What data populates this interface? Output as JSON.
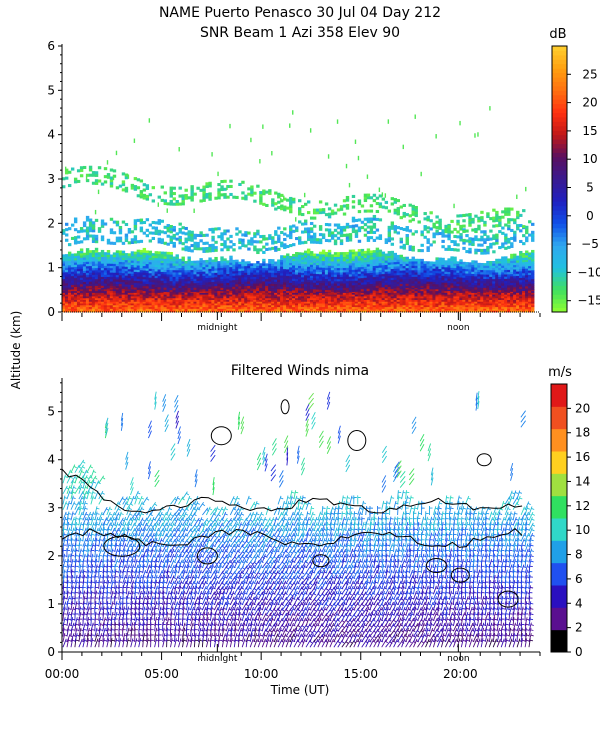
{
  "figure": {
    "title_line1": "NAME Puerto Penasco  30 Jul 04 Day 212",
    "y_axis_label": "Altitude (km)",
    "x_axis_label": "Time (UT)"
  },
  "chart_data": [
    {
      "type": "heatmap",
      "title": "SNR Beam 1 Azi 358 Elev 90",
      "ylabel": "Altitude (km)",
      "ylim": [
        0,
        6
      ],
      "y_ticks": [
        "0",
        "1",
        "2",
        "3",
        "4",
        "5",
        "6"
      ],
      "y_tick_values": [
        0,
        1,
        2,
        3,
        4,
        5,
        6
      ],
      "x_range_hours": [
        0,
        24
      ],
      "x_markers": [
        {
          "label": "midnight",
          "hour": 7.8
        },
        {
          "label": "noon",
          "hour": 19.9
        }
      ],
      "colorbar": {
        "unit": "dB",
        "ticks": [
          "25",
          "20",
          "15",
          "10",
          "5",
          "0",
          "−5",
          "−10",
          "−15"
        ],
        "tick_values": [
          25,
          20,
          15,
          10,
          5,
          0,
          -5,
          -10,
          -15
        ],
        "range": [
          -17,
          30
        ],
        "colors": [
          "#90ff30",
          "#40e060",
          "#20c0e0",
          "#30a8f0",
          "#1050e8",
          "#2020c0",
          "#3a1a90",
          "#5a1060",
          "#c01818",
          "#ff3010",
          "#ff7010",
          "#ffa010",
          "#ffd030"
        ]
      },
      "layers": [
        {
          "name": "surface echo",
          "alt_km": [
            0,
            0.5
          ],
          "snr_db": 20
        },
        {
          "name": "boundary layer",
          "alt_km": [
            0.4,
            1.0
          ],
          "snr_db": 8
        },
        {
          "name": "upper mixed layer",
          "alt_km": [
            0.9,
            1.4
          ],
          "snr_db": -5
        },
        {
          "name": "elevated layer",
          "alt_km": [
            1.4,
            2.0
          ],
          "snr_db": -12
        },
        {
          "name": "high layer",
          "alt_km": [
            2.0,
            3.2
          ],
          "snr_db": -14
        }
      ]
    },
    {
      "type": "scatter",
      "title": "Filtered Winds nima",
      "ylabel": "Altitude (km)",
      "xlabel": "Time (UT)",
      "ylim": [
        0,
        5.7
      ],
      "y_ticks": [
        "0",
        "1",
        "2",
        "3",
        "4",
        "5"
      ],
      "y_tick_values": [
        0,
        1,
        2,
        3,
        4,
        5
      ],
      "x_ticks": [
        "00:00",
        "05:00",
        "10:00",
        "15:00",
        "20:00"
      ],
      "x_tick_values": [
        0,
        5,
        10,
        15,
        20
      ],
      "x_range_hours": [
        0,
        24
      ],
      "x_markers": [
        {
          "label": "midnight",
          "hour": 7.8
        },
        {
          "label": "noon",
          "hour": 19.9
        }
      ],
      "colorbar": {
        "unit": "m/s",
        "ticks": [
          "20",
          "18",
          "16",
          "14",
          "12",
          "10",
          "8",
          "6",
          "4",
          "2",
          "0"
        ],
        "tick_values": [
          20,
          18,
          16,
          14,
          12,
          10,
          8,
          6,
          4,
          2,
          0
        ],
        "range": [
          0,
          22
        ],
        "colors": [
          "#000000",
          "#5a1090",
          "#2a10c0",
          "#2050f0",
          "#20a0e8",
          "#30d8c8",
          "#30e060",
          "#a0e040",
          "#ffd020",
          "#ff9020",
          "#f05020",
          "#e01818"
        ]
      },
      "wind_speed_profile": [
        {
          "alt_km": 0.5,
          "speed_ms": 3
        },
        {
          "alt_km": 1.5,
          "speed_ms": 5
        },
        {
          "alt_km": 2.5,
          "speed_ms": 7
        },
        {
          "alt_km": 3.5,
          "speed_ms": 9
        },
        {
          "alt_km": 4.5,
          "speed_ms": 9
        }
      ]
    }
  ]
}
